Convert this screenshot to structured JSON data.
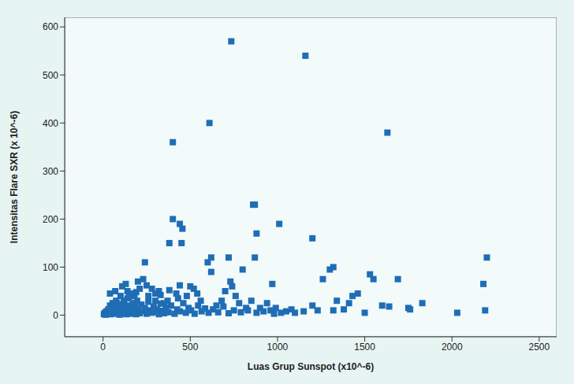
{
  "chart_data": {
    "type": "scatter",
    "x_label": "Luas Grup Sunspot (x10^-6)",
    "y_label": "Intensitas Flare SXR (x 10^-6)",
    "x": [
      735,
      1160,
      610,
      400,
      1630,
      860,
      870,
      1010,
      880,
      400,
      440,
      455,
      380,
      450,
      1200,
      240,
      600,
      620,
      720,
      870,
      620,
      730,
      800,
      740,
      970,
      1300,
      1320,
      1260,
      1530,
      1550,
      1690,
      2200,
      2180,
      2190,
      2030,
      1830,
      1750,
      1760,
      1640,
      1600,
      1500,
      1460,
      1430,
      1410,
      1340,
      1320,
      1230,
      1200,
      1150,
      1100,
      1080,
      1050,
      1020,
      990,
      960,
      940,
      900,
      850,
      830,
      780,
      760,
      700,
      680,
      650,
      560,
      540,
      520,
      500,
      480,
      430,
      420,
      370,
      350,
      320,
      300,
      280,
      260,
      230,
      210,
      200,
      180,
      160,
      140,
      130,
      120,
      100,
      90,
      80,
      60,
      40,
      5,
      10,
      15,
      20,
      25,
      30,
      35,
      40,
      45,
      50,
      55,
      60,
      65,
      70,
      75,
      80,
      85,
      90,
      95,
      100,
      105,
      110,
      115,
      120,
      125,
      130,
      135,
      140,
      145,
      150,
      155,
      160,
      165,
      170,
      175,
      180,
      185,
      190,
      195,
      200,
      210,
      220,
      230,
      240,
      250,
      260,
      270,
      280,
      290,
      300,
      310,
      320,
      330,
      340,
      350,
      360,
      375,
      390,
      410,
      425,
      440,
      460,
      475,
      490,
      505,
      525,
      545,
      565,
      585,
      605,
      630,
      660,
      690,
      720,
      750,
      790,
      820,
      880,
      920,
      980,
      70,
      110,
      150,
      190,
      250,
      330,
      380,
      440,
      300,
      1380
    ],
    "values": [
      570,
      540,
      400,
      360,
      380,
      230,
      230,
      190,
      170,
      200,
      190,
      180,
      150,
      150,
      160,
      110,
      110,
      120,
      120,
      120,
      90,
      70,
      95,
      60,
      65,
      95,
      100,
      75,
      85,
      75,
      75,
      120,
      65,
      10,
      5,
      25,
      15,
      12,
      18,
      20,
      5,
      45,
      40,
      25,
      30,
      10,
      10,
      20,
      8,
      5,
      12,
      8,
      5,
      15,
      10,
      25,
      15,
      30,
      10,
      25,
      40,
      50,
      30,
      20,
      30,
      45,
      55,
      60,
      40,
      35,
      45,
      30,
      25,
      50,
      45,
      55,
      40,
      75,
      55,
      70,
      40,
      45,
      50,
      65,
      30,
      40,
      20,
      25,
      15,
      45,
      2,
      5,
      1,
      8,
      3,
      12,
      6,
      20,
      2,
      10,
      25,
      4,
      15,
      7,
      30,
      3,
      18,
      9,
      1,
      22,
      6,
      12,
      3,
      28,
      8,
      16,
      2,
      35,
      10,
      5,
      20,
      14,
      3,
      25,
      9,
      6,
      18,
      2,
      30,
      11,
      4,
      22,
      8,
      15,
      3,
      28,
      10,
      5,
      18,
      7,
      12,
      2,
      24,
      9,
      4,
      16,
      6,
      20,
      3,
      12,
      8,
      25,
      5,
      15,
      10,
      3,
      20,
      8,
      14,
      5,
      12,
      6,
      18,
      4,
      10,
      6,
      15,
      5,
      8,
      3,
      50,
      60,
      38,
      48,
      62,
      42,
      52,
      62,
      30,
      12
    ],
    "color": "#1f6db5",
    "marker": "square",
    "xlim": [
      -220,
      2600
    ],
    "xticks": [
      0,
      500,
      1000,
      1500,
      2000,
      2500
    ],
    "ylim": [
      -45,
      620
    ],
    "yticks": [
      0,
      100,
      200,
      300,
      400,
      500,
      600
    ],
    "grid": false
  }
}
